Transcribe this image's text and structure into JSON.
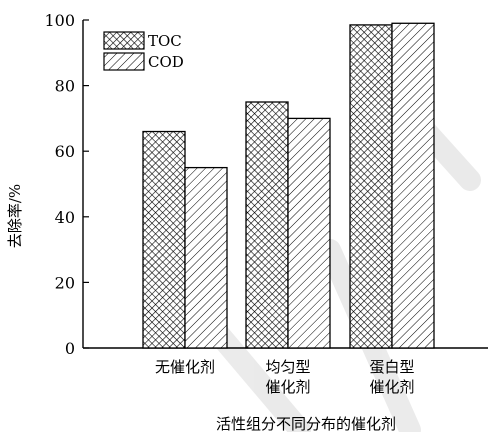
{
  "chart_data": {
    "type": "bar",
    "categories": [
      [
        "无催化剂"
      ],
      [
        "均匀型",
        "催化剂"
      ],
      [
        "蛋白型",
        "催化剂"
      ]
    ],
    "series": [
      {
        "name": "TOC",
        "values": [
          66,
          75,
          98.5
        ],
        "pattern": "cross-hatch"
      },
      {
        "name": "COD",
        "values": [
          55,
          70,
          99
        ],
        "pattern": "diagonal-hatch"
      }
    ],
    "xlabel": "活性组分不同分布的催化剂",
    "ylabel": "去除率/%",
    "ylim": [
      0,
      100
    ],
    "yticks": [
      0,
      20,
      40,
      60,
      80,
      100
    ],
    "legend": "top-left",
    "grid": false
  }
}
